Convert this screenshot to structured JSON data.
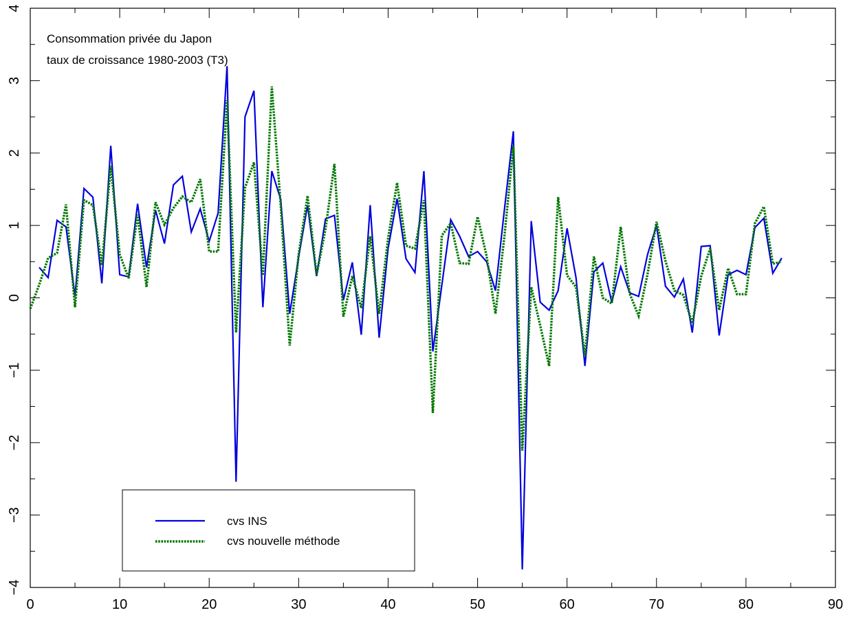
{
  "chart_data": {
    "type": "line",
    "title_lines": [
      "Consommation privée du Japon",
      "taux de croissance 1980-2003 (T3)"
    ],
    "xlabel": "",
    "ylabel": "",
    "xlim": [
      0,
      90
    ],
    "ylim": [
      -4,
      4
    ],
    "xticks": [
      0,
      10,
      20,
      30,
      40,
      50,
      60,
      70,
      80,
      90
    ],
    "yticks": [
      -4,
      -3,
      -2,
      -1,
      0,
      1,
      2,
      3,
      4
    ],
    "xtick_labels": [
      "0",
      "10",
      "20",
      "30",
      "40",
      "50",
      "60",
      "70",
      "80",
      "90"
    ],
    "ytick_labels": [
      "−4",
      "−3",
      "−2",
      "−1",
      "0",
      "1",
      "2",
      "3",
      "4"
    ],
    "grid": false,
    "legend_position": "lower-left",
    "series": [
      {
        "name": "cvs INS",
        "color": "#0000dd",
        "style": "solid",
        "x": [
          1,
          2,
          3,
          4,
          5,
          6,
          7,
          8,
          9,
          10,
          11,
          12,
          13,
          14,
          15,
          16,
          17,
          18,
          19,
          20,
          21,
          22,
          23,
          24,
          25,
          26,
          27,
          28,
          29,
          30,
          31,
          32,
          33,
          34,
          35,
          36,
          37,
          38,
          39,
          40,
          41,
          42,
          43,
          44,
          45,
          46,
          47,
          48,
          49,
          50,
          51,
          52,
          53,
          54,
          55,
          56,
          57,
          58,
          59,
          60,
          61,
          62,
          63,
          64,
          65,
          66,
          67,
          68,
          69,
          70,
          71,
          72,
          73,
          74,
          75,
          76,
          77,
          78,
          79,
          80,
          81,
          82,
          83,
          84
        ],
        "values": [
          0.42,
          0.28,
          1.07,
          0.98,
          0.02,
          1.51,
          1.39,
          0.2,
          2.1,
          0.32,
          0.29,
          1.3,
          0.42,
          1.21,
          0.75,
          1.56,
          1.68,
          0.91,
          1.23,
          0.78,
          1.17,
          3.2,
          -2.54,
          2.5,
          2.86,
          -0.13,
          1.75,
          1.36,
          -0.22,
          0.56,
          1.28,
          0.3,
          1.09,
          1.14,
          -0.03,
          0.49,
          -0.51,
          1.28,
          -0.55,
          0.68,
          1.37,
          0.54,
          0.35,
          1.75,
          -0.74,
          0.17,
          1.08,
          0.85,
          0.57,
          0.64,
          0.5,
          0.1,
          1.22,
          2.3,
          -3.75,
          1.06,
          -0.06,
          -0.17,
          0.1,
          0.96,
          0.28,
          -0.94,
          0.36,
          0.48,
          -0.06,
          0.43,
          0.07,
          0.02,
          0.6,
          1.0,
          0.16,
          0.01,
          0.26,
          -0.48,
          0.71,
          0.72,
          -0.52,
          0.32,
          0.38,
          0.32,
          0.97,
          1.1,
          0.34,
          0.55
        ]
      },
      {
        "name": "cvs nouvelle méthode",
        "color": "#007700",
        "style": "dotted",
        "x": [
          0,
          1,
          2,
          3,
          4,
          5,
          6,
          7,
          8,
          9,
          10,
          11,
          12,
          13,
          14,
          15,
          16,
          17,
          18,
          19,
          20,
          21,
          22,
          23,
          24,
          25,
          26,
          27,
          28,
          29,
          30,
          31,
          32,
          33,
          34,
          35,
          36,
          37,
          38,
          39,
          40,
          41,
          42,
          43,
          44,
          45,
          46,
          47,
          48,
          49,
          50,
          51,
          52,
          53,
          54,
          55,
          56,
          57,
          58,
          59,
          60,
          61,
          62,
          63,
          64,
          65,
          66,
          67,
          68,
          69,
          70,
          71,
          72,
          73,
          74,
          75,
          76,
          77,
          78,
          79,
          80,
          81,
          82,
          83,
          84
        ],
        "values": [
          -0.15,
          0.18,
          0.55,
          0.62,
          1.29,
          -0.13,
          1.35,
          1.28,
          0.45,
          1.82,
          0.6,
          0.27,
          1.15,
          0.15,
          1.32,
          1.01,
          1.24,
          1.4,
          1.32,
          1.64,
          0.64,
          0.64,
          2.73,
          -0.48,
          1.52,
          1.87,
          0.31,
          2.92,
          1.27,
          -0.66,
          0.6,
          1.41,
          0.32,
          0.95,
          1.85,
          -0.26,
          0.3,
          -0.14,
          0.85,
          -0.22,
          0.82,
          1.59,
          0.72,
          0.68,
          1.35,
          -1.59,
          0.86,
          1.03,
          0.48,
          0.47,
          1.12,
          0.58,
          -0.22,
          0.85,
          2.1,
          -2.11,
          0.15,
          -0.38,
          -0.94,
          1.39,
          0.31,
          0.15,
          -0.8,
          0.57,
          0.0,
          -0.08,
          0.98,
          0.06,
          -0.25,
          0.33,
          1.05,
          0.51,
          0.1,
          0.04,
          -0.35,
          0.3,
          0.68,
          -0.17,
          0.41,
          0.05,
          0.05,
          1.03,
          1.26,
          0.47,
          0.5
        ]
      }
    ]
  }
}
